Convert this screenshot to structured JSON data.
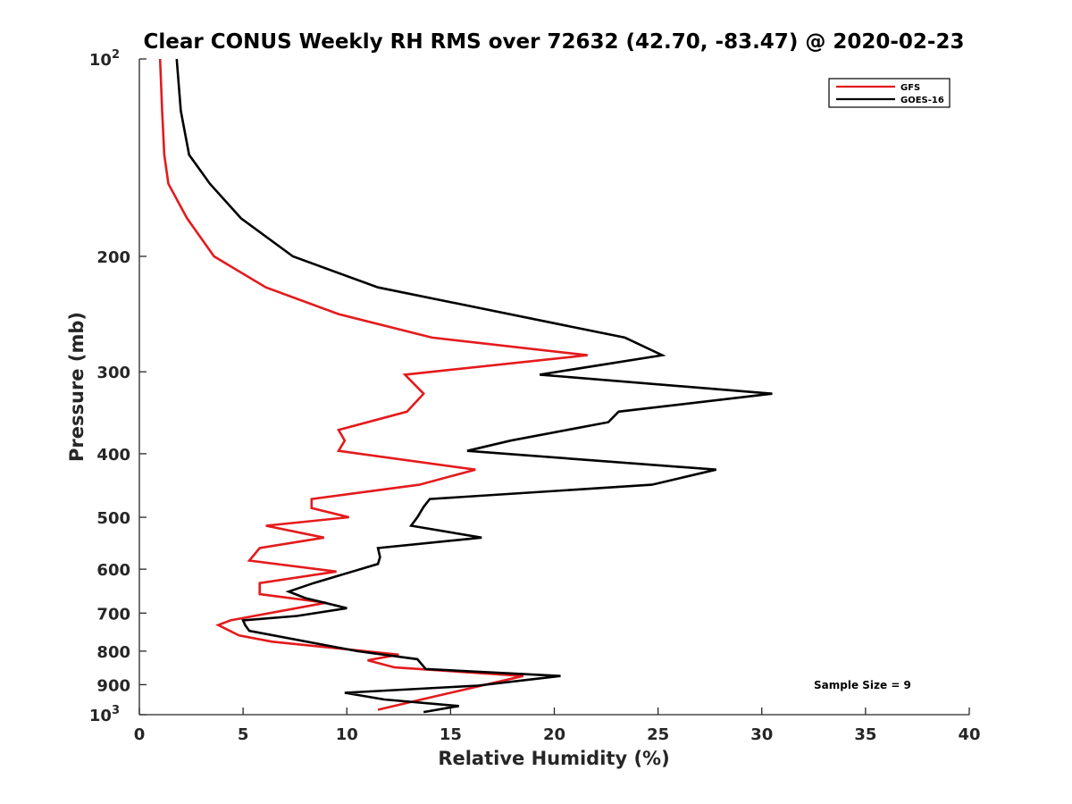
{
  "chart_data": {
    "type": "line",
    "title": "Clear CONUS Weekly RH RMS over 72632 (42.70, -83.47) @ 2020-02-23",
    "xlabel": "Relative Humidity (%)",
    "ylabel": "Pressure (mb)",
    "xlim": [
      0,
      40
    ],
    "ylim": [
      100,
      1000
    ],
    "y_scale": "log",
    "y_reversed": true,
    "x_ticks": [
      0,
      5,
      10,
      15,
      20,
      25,
      30,
      35,
      40
    ],
    "y_ticks": [
      {
        "value": 100,
        "label": "10",
        "sup": "2"
      },
      {
        "value": 200,
        "label": "200"
      },
      {
        "value": 300,
        "label": "300"
      },
      {
        "value": 400,
        "label": "400"
      },
      {
        "value": 500,
        "label": "500"
      },
      {
        "value": 600,
        "label": "600"
      },
      {
        "value": 700,
        "label": "700"
      },
      {
        "value": 800,
        "label": "800"
      },
      {
        "value": 900,
        "label": "900"
      },
      {
        "value": 1000,
        "label": "10",
        "sup": "3"
      }
    ],
    "grid": false,
    "legend_position": "top-right",
    "annotation": "Sample Size = 9",
    "series": [
      {
        "name": "GFS",
        "color": "#e41a1c",
        "points": [
          [
            1.0,
            100
          ],
          [
            1.1,
            120
          ],
          [
            1.2,
            140
          ],
          [
            1.4,
            155
          ],
          [
            2.3,
            175
          ],
          [
            3.6,
            200
          ],
          [
            6.1,
            223
          ],
          [
            9.6,
            245
          ],
          [
            14.1,
            266
          ],
          [
            21.6,
            283
          ],
          [
            12.8,
            303
          ],
          [
            13.7,
            324
          ],
          [
            12.9,
            345
          ],
          [
            9.6,
            368
          ],
          [
            9.9,
            382
          ],
          [
            9.6,
            396
          ],
          [
            16.2,
            423
          ],
          [
            13.5,
            446
          ],
          [
            8.3,
            469
          ],
          [
            8.3,
            484
          ],
          [
            10.1,
            500
          ],
          [
            6.1,
            515
          ],
          [
            8.9,
            537
          ],
          [
            5.8,
            557
          ],
          [
            5.3,
            582
          ],
          [
            9.5,
            605
          ],
          [
            5.8,
            630
          ],
          [
            5.8,
            655
          ],
          [
            9.0,
            675
          ],
          [
            4.4,
            718
          ],
          [
            3.8,
            730
          ],
          [
            4.8,
            757
          ],
          [
            6.4,
            774
          ],
          [
            12.5,
            810
          ],
          [
            11.0,
            826
          ],
          [
            12.3,
            847
          ],
          [
            18.5,
            873
          ],
          [
            13.6,
            948
          ],
          [
            11.5,
            983
          ]
        ]
      },
      {
        "name": "GOES-16",
        "color": "#000000",
        "points": [
          [
            1.8,
            100
          ],
          [
            2.0,
            120
          ],
          [
            2.4,
            140
          ],
          [
            3.4,
            155
          ],
          [
            4.9,
            175
          ],
          [
            7.4,
            200
          ],
          [
            11.5,
            223
          ],
          [
            23.4,
            266
          ],
          [
            25.2,
            283
          ],
          [
            19.3,
            303
          ],
          [
            30.5,
            324
          ],
          [
            23.1,
            345
          ],
          [
            22.6,
            358
          ],
          [
            17.9,
            382
          ],
          [
            15.8,
            396
          ],
          [
            27.8,
            423
          ],
          [
            24.7,
            446
          ],
          [
            14.0,
            469
          ],
          [
            13.7,
            482
          ],
          [
            13.4,
            500
          ],
          [
            13.1,
            515
          ],
          [
            16.5,
            537
          ],
          [
            11.5,
            557
          ],
          [
            11.6,
            575
          ],
          [
            11.5,
            589
          ],
          [
            8.4,
            630
          ],
          [
            7.2,
            649
          ],
          [
            8.0,
            664
          ],
          [
            10.0,
            688
          ],
          [
            7.6,
            707
          ],
          [
            5.0,
            718
          ],
          [
            5.1,
            730
          ],
          [
            5.3,
            745
          ],
          [
            10.5,
            800
          ],
          [
            13.4,
            823
          ],
          [
            13.8,
            852
          ],
          [
            20.3,
            873
          ],
          [
            16.3,
            903
          ],
          [
            9.9,
            926
          ],
          [
            11.8,
            948
          ],
          [
            15.4,
            970
          ],
          [
            13.7,
            991
          ]
        ]
      }
    ]
  }
}
